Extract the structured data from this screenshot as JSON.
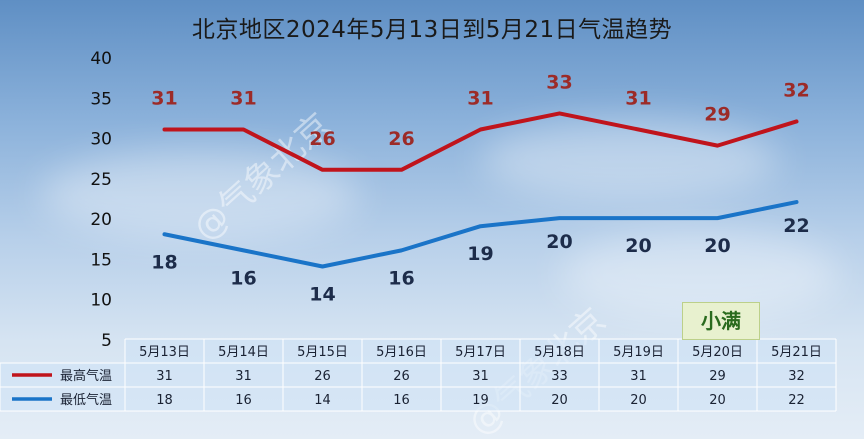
{
  "title": "北京地区2024年5月13日到5月21日气温趋势",
  "watermark": "@气象北京",
  "annotation": "小满",
  "colors": {
    "high": "#c0141c",
    "low": "#1a74c8",
    "label_high": "#9c2b28",
    "label_low": "#1d2c4a"
  },
  "chart_data": {
    "type": "line",
    "title": "北京地区2024年5月13日到5月21日气温趋势",
    "categories": [
      "5月13日",
      "5月14日",
      "5月15日",
      "5月16日",
      "5月17日",
      "5月18日",
      "5月19日",
      "5月20日",
      "5月21日"
    ],
    "series": [
      {
        "name": "最高气温",
        "values": [
          31,
          31,
          26,
          26,
          31,
          33,
          31,
          29,
          32
        ]
      },
      {
        "name": "最低气温",
        "values": [
          18,
          16,
          14,
          16,
          19,
          20,
          20,
          20,
          22
        ]
      }
    ],
    "yticks": [
      5,
      10,
      15,
      20,
      25,
      30,
      35,
      40
    ],
    "ylim": [
      5,
      40
    ],
    "grid": false,
    "legend": "table-left",
    "data_table": true
  }
}
